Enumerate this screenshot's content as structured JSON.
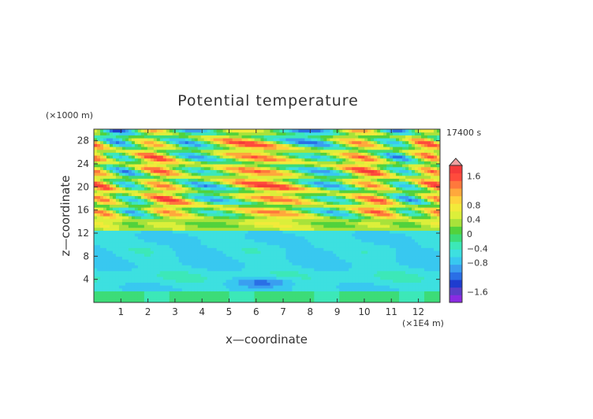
{
  "chart_data": {
    "type": "heatmap",
    "title": "Potential temperature",
    "xlabel": "x—coordinate",
    "ylabel": "z—coordinate",
    "x_unit": "(×1E4 m)",
    "y_unit": "(×1000 m)",
    "time_label": "17400 s",
    "xlim": [
      0,
      12.8
    ],
    "ylim": [
      0,
      30
    ],
    "x_ticks": [
      "1",
      "2",
      "3",
      "4",
      "5",
      "6",
      "7",
      "8",
      "9",
      "10",
      "11",
      "12"
    ],
    "y_ticks": [
      "4",
      "8",
      "12",
      "16",
      "20",
      "24",
      "28"
    ],
    "colorbar": {
      "labels": [
        "1.6",
        "0.8",
        "0.4",
        "0",
        "−0.4",
        "−0.8",
        "−1.6"
      ],
      "levels": [
        1.6,
        0.8,
        0.4,
        0,
        -0.4,
        -0.8,
        -1.6
      ],
      "range": [
        -1.9,
        1.9
      ],
      "colors": [
        "#8a2be2",
        "#5a3ec8",
        "#1e3ccf",
        "#2a6fe6",
        "#3a9ef0",
        "#38c8f0",
        "#3de0e0",
        "#3ce8b8",
        "#3cdc78",
        "#52d23c",
        "#a8e23a",
        "#dcef3a",
        "#f2ea3a",
        "#ffd23c",
        "#ffa83c",
        "#ff783c",
        "#ff4b3c",
        "#f53a3a"
      ]
    },
    "field_description": "wave pattern of potential temperature perturbation; negative layer below 12 km, oscillating cells between 13 and 30 km"
  },
  "colors": {
    "frame": "#333333",
    "background": "#ffffff"
  }
}
